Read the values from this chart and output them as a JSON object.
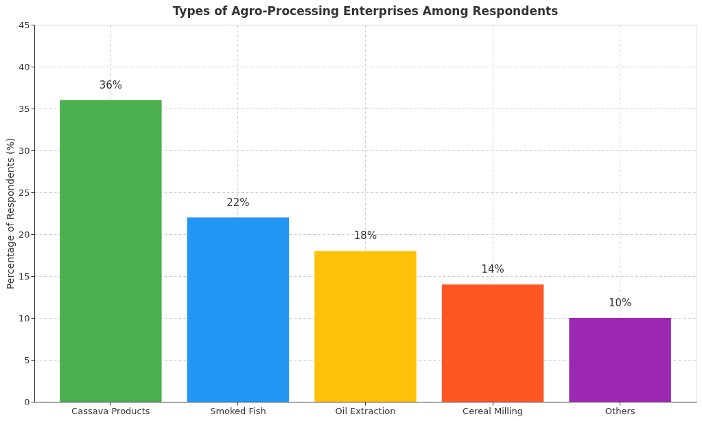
{
  "chart_data": {
    "type": "bar",
    "title": "Types of Agro-Processing Enterprises Among Respondents",
    "ylabel": "Percentage of Respondents (%)",
    "categories": [
      "Cassava Products",
      "Smoked Fish",
      "Oil Extraction",
      "Cereal Milling",
      "Others"
    ],
    "values": [
      36,
      22,
      18,
      14,
      10
    ],
    "colors": [
      "#4caf50",
      "#2196f3",
      "#ffc107",
      "#ff5722",
      "#9c27b0"
    ],
    "value_labels": [
      "36%",
      "22%",
      "18%",
      "14%",
      "10%"
    ],
    "ylim": [
      0,
      45
    ],
    "yticks": [
      0,
      5,
      10,
      15,
      20,
      25,
      30,
      35,
      40,
      45
    ],
    "grid": true
  }
}
